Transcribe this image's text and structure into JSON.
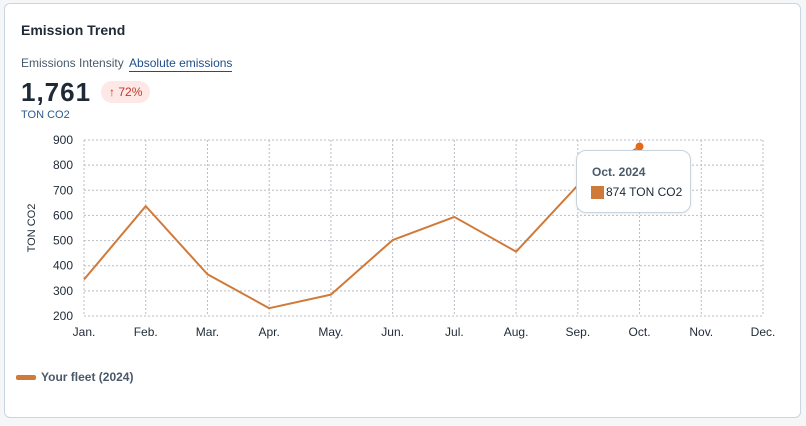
{
  "card": {
    "title": "Emission Trend",
    "toggle_inactive": "Emissions Intensity",
    "toggle_active": "Absolute emissions",
    "total_value": "1,761",
    "change_arrow": "↑",
    "change_value": "72%",
    "unit": "TON CO2",
    "legend_label": "Your fleet (2024)"
  },
  "tooltip": {
    "date": "Oct. 2024",
    "value_text": "874 TON CO2"
  },
  "colors": {
    "series": "#d07a3a",
    "badge_bg": "#fde8e6",
    "badge_text": "#c0392b"
  },
  "chart_data": {
    "type": "line",
    "categories": [
      "Jan.",
      "Feb.",
      "Mar.",
      "Apr.",
      "May.",
      "Jun.",
      "Jul.",
      "Aug.",
      "Sep.",
      "Oct.",
      "Nov.",
      "Dec."
    ],
    "series": [
      {
        "name": "Your fleet (2024)",
        "values": [
          345,
          637,
          366,
          231,
          285,
          502,
          594,
          456,
          720,
          874,
          null,
          null
        ]
      }
    ],
    "ylabel": "TON CO2",
    "xlabel": "",
    "ylim": [
      200,
      900
    ],
    "yticks": [
      900,
      800,
      700,
      600,
      500,
      400,
      300,
      200
    ],
    "grid": true,
    "legend": "bottom-left"
  }
}
